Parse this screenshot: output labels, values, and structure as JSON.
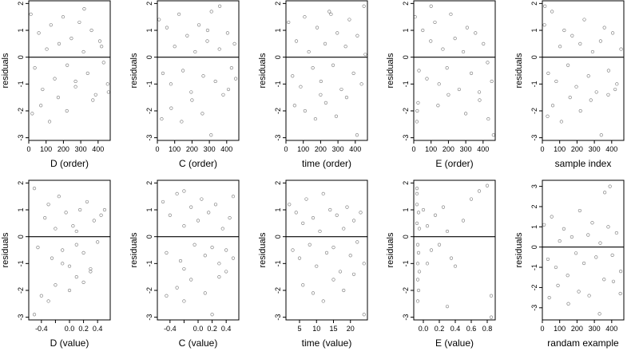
{
  "chart_data": [
    {
      "id": "p1",
      "type": "scatter",
      "xlabel": "D (order)",
      "ylabel": "residuals",
      "xlim": [
        0,
        470
      ],
      "ylim": [
        -3.1,
        2.1
      ],
      "xticks": [
        0,
        100,
        200,
        300,
        400
      ],
      "xtick_labels": [
        "0",
        "100",
        "200",
        "300",
        "400"
      ],
      "yticks": [
        -3,
        -2,
        -1,
        0,
        1,
        2
      ],
      "ytick_labels": [
        "-3",
        "-2",
        "-1",
        "0",
        "1",
        "2"
      ],
      "hline": 0,
      "x": [
        12,
        35,
        58,
        80,
        104,
        128,
        150,
        175,
        198,
        222,
        246,
        270,
        292,
        316,
        340,
        362,
        386,
        410,
        432,
        455,
        20,
        70,
        120,
        170,
        220,
        270,
        320,
        370,
        420,
        460
      ],
      "y": [
        1.6,
        -0.4,
        0.9,
        -1.2,
        0.3,
        1.2,
        -0.8,
        0.5,
        1.5,
        -0.3,
        0.7,
        -1.1,
        1.3,
        0.2,
        -0.6,
        1.0,
        -1.4,
        0.6,
        -0.2,
        -1.0,
        -2.1,
        -1.8,
        -2.4,
        -1.5,
        -2.0,
        -0.9,
        1.8,
        -1.6,
        0.4,
        -1.3
      ]
    },
    {
      "id": "p2",
      "type": "scatter",
      "xlabel": "C (order)",
      "ylabel": "residuals",
      "xlim": [
        0,
        470
      ],
      "ylim": [
        -3.1,
        2.1
      ],
      "xticks": [
        0,
        100,
        200,
        300,
        400
      ],
      "xtick_labels": [
        "0",
        "100",
        "200",
        "300",
        "400"
      ],
      "yticks": [
        -3,
        -2,
        -1,
        0,
        1,
        2
      ],
      "ytick_labels": [
        "-3",
        "-2",
        "-1",
        "0",
        "1",
        "2"
      ],
      "hline": 0,
      "x": [
        10,
        32,
        55,
        78,
        100,
        125,
        148,
        172,
        195,
        218,
        240,
        265,
        288,
        312,
        335,
        358,
        380,
        405,
        428,
        452,
        25,
        80,
        140,
        200,
        260,
        310,
        360,
        410,
        445,
        290
      ],
      "y": [
        1.4,
        -0.6,
        1.1,
        -1.0,
        0.4,
        1.6,
        -0.5,
        0.8,
        -1.3,
        0.2,
        1.2,
        -0.7,
        0.6,
        1.7,
        -0.9,
        0.3,
        -1.4,
        0.9,
        -0.4,
        -0.8,
        -2.3,
        -1.9,
        -2.4,
        -1.6,
        -2.1,
        -2.9,
        1.9,
        -1.2,
        0.5,
        1.0
      ]
    },
    {
      "id": "p3",
      "type": "scatter",
      "xlabel": "time (order)",
      "ylabel": "residuals",
      "xlim": [
        0,
        470
      ],
      "ylim": [
        -3.1,
        2.1
      ],
      "xticks": [
        0,
        100,
        200,
        300,
        400
      ],
      "xtick_labels": [
        "0",
        "100",
        "200",
        "300",
        "400"
      ],
      "yticks": [
        -3,
        -2,
        -1,
        0,
        1,
        2
      ],
      "ytick_labels": [
        "-3",
        "-2",
        "-1",
        "0",
        "1",
        "2"
      ],
      "hline": 0,
      "x": [
        15,
        38,
        60,
        85,
        108,
        132,
        155,
        180,
        202,
        226,
        250,
        272,
        296,
        320,
        344,
        366,
        390,
        412,
        436,
        458,
        50,
        110,
        170,
        230,
        290,
        350,
        410,
        450,
        200,
        260
      ],
      "y": [
        1.3,
        -0.7,
        0.6,
        -1.1,
        1.5,
        0.2,
        -0.4,
        1.1,
        -0.9,
        0.5,
        1.7,
        -0.3,
        0.9,
        -1.2,
        0.4,
        1.4,
        -0.6,
        0.8,
        -1.0,
        0.1,
        -1.8,
        -2.0,
        -2.3,
        -1.7,
        -2.2,
        -1.5,
        -2.9,
        1.9,
        -1.4,
        1.6
      ]
    },
    {
      "id": "p4",
      "type": "scatter",
      "xlabel": "E (order)",
      "ylabel": "residuals",
      "xlim": [
        0,
        470
      ],
      "ylim": [
        -3.1,
        2.1
      ],
      "xticks": [
        0,
        100,
        200,
        300,
        400
      ],
      "xtick_labels": [
        "0",
        "100",
        "200",
        "300",
        "400"
      ],
      "yticks": [
        -3,
        -2,
        -1,
        0,
        1,
        2
      ],
      "ytick_labels": [
        "-3",
        "-2",
        "-1",
        "0",
        "1",
        "2"
      ],
      "hline": 0,
      "x": [
        8,
        30,
        52,
        76,
        98,
        122,
        146,
        168,
        192,
        214,
        238,
        262,
        286,
        308,
        332,
        356,
        378,
        402,
        426,
        450,
        20,
        18,
        25,
        140,
        200,
        300,
        380,
        430,
        460,
        100
      ],
      "y": [
        1.5,
        -0.5,
        1.0,
        -0.8,
        0.6,
        1.3,
        -1.0,
        0.3,
        -0.4,
        1.6,
        0.7,
        -1.2,
        0.2,
        1.1,
        -0.6,
        0.9,
        -1.3,
        0.5,
        -0.2,
        -0.9,
        -2.0,
        -2.4,
        -1.7,
        -1.8,
        -1.4,
        -2.1,
        -1.6,
        -2.3,
        -2.9,
        1.9
      ]
    },
    {
      "id": "p5",
      "type": "scatter",
      "xlabel": "sample index",
      "ylabel": "residuals",
      "xlim": [
        0,
        470
      ],
      "ylim": [
        -3.1,
        2.1
      ],
      "xticks": [
        0,
        100,
        200,
        300,
        400
      ],
      "xtick_labels": [
        "0",
        "100",
        "200",
        "300",
        "400"
      ],
      "yticks": [
        -3,
        -2,
        -1,
        0,
        1,
        2
      ],
      "ytick_labels": [
        "-3",
        "-2",
        "-1",
        "0",
        "1",
        "2"
      ],
      "hline": 0,
      "x": [
        12,
        34,
        56,
        80,
        102,
        126,
        148,
        172,
        196,
        218,
        242,
        266,
        290,
        312,
        336,
        358,
        382,
        406,
        430,
        454,
        30,
        60,
        110,
        160,
        220,
        280,
        340,
        380,
        420,
        15
      ],
      "y": [
        1.2,
        -0.6,
        1.7,
        -0.9,
        0.4,
        1.0,
        -0.3,
        0.8,
        -1.1,
        0.5,
        1.4,
        -0.7,
        0.2,
        -1.3,
        0.6,
        1.1,
        -0.5,
        0.9,
        -1.0,
        0.3,
        -2.2,
        -1.8,
        -2.4,
        -1.5,
        -2.0,
        -1.6,
        -2.9,
        -1.4,
        -1.2,
        1.9
      ]
    },
    {
      "id": "p6",
      "type": "scatter",
      "xlabel": "D (value)",
      "ylabel": "residuals",
      "xlim": [
        -0.58,
        0.58
      ],
      "ylim": [
        -3.1,
        2.1
      ],
      "xticks": [
        -0.4,
        -0.2,
        0.0,
        0.2,
        0.4
      ],
      "xtick_labels": [
        "-0.4",
        "",
        "0.0",
        "0.2",
        "0.4"
      ],
      "yticks": [
        -3,
        -2,
        -1,
        0,
        1,
        2
      ],
      "ytick_labels": [
        "-3",
        "-2",
        "-1",
        "0",
        "1",
        "2"
      ],
      "hline": 0,
      "x": [
        -0.5,
        -0.45,
        -0.35,
        -0.3,
        -0.25,
        -0.2,
        -0.15,
        -0.1,
        -0.05,
        0.0,
        0.05,
        0.1,
        0.1,
        0.15,
        0.2,
        0.25,
        0.3,
        0.35,
        0.4,
        0.45,
        -0.5,
        -0.4,
        -0.3,
        -0.2,
        0.0,
        0.1,
        0.2,
        0.3,
        0.5,
        -0.1
      ],
      "y": [
        1.8,
        -0.4,
        0.7,
        1.2,
        -0.8,
        0.3,
        1.5,
        -0.5,
        0.9,
        -1.1,
        0.4,
        -0.3,
        0.2,
        1.0,
        -0.6,
        1.3,
        -1.2,
        0.6,
        -0.2,
        0.8,
        -2.9,
        -2.2,
        -2.4,
        -1.8,
        -2.0,
        -1.5,
        -1.7,
        -1.3,
        1.0,
        -1.0
      ]
    },
    {
      "id": "p7",
      "type": "scatter",
      "xlabel": "C (value)",
      "ylabel": "residuals",
      "xlim": [
        -0.58,
        0.58
      ],
      "ylim": [
        -3.1,
        2.1
      ],
      "xticks": [
        -0.4,
        -0.2,
        0.0,
        0.2,
        0.4
      ],
      "xtick_labels": [
        "-0.4",
        "",
        "0.0",
        "0.2",
        "0.4"
      ],
      "yticks": [
        -3,
        -2,
        -1,
        0,
        1,
        2
      ],
      "ytick_labels": [
        "-3",
        "-2",
        "-1",
        "0",
        "1",
        "2"
      ],
      "hline": 0,
      "x": [
        -0.5,
        -0.45,
        -0.4,
        -0.3,
        -0.25,
        -0.2,
        -0.2,
        -0.1,
        -0.05,
        0.0,
        0.05,
        0.1,
        0.15,
        0.2,
        0.25,
        0.3,
        0.35,
        0.4,
        0.45,
        0.5,
        -0.45,
        -0.3,
        -0.2,
        -0.1,
        0.1,
        0.2,
        0.3,
        0.4,
        0.5,
        -0.2
      ],
      "y": [
        1.3,
        -0.6,
        0.8,
        1.6,
        -0.9,
        0.4,
        -1.2,
        1.1,
        -0.3,
        0.6,
        1.4,
        -0.7,
        0.9,
        -0.4,
        1.2,
        -1.0,
        0.3,
        -0.5,
        0.7,
        -0.8,
        -2.2,
        -1.9,
        -2.4,
        -1.6,
        -2.1,
        -2.9,
        -1.5,
        -1.3,
        1.5,
        1.7
      ]
    },
    {
      "id": "p8",
      "type": "scatter",
      "xlabel": "time (value)",
      "ylabel": "residuals",
      "xlim": [
        1,
        25
      ],
      "ylim": [
        -3.1,
        2.1
      ],
      "xticks": [
        5,
        10,
        15,
        20
      ],
      "xtick_labels": [
        "5",
        "10",
        "15",
        "20"
      ],
      "yticks": [
        -3,
        -2,
        -1,
        0,
        1,
        2
      ],
      "ytick_labels": [
        "-3",
        "-2",
        "-1",
        "0",
        "1",
        "2"
      ],
      "hline": 0,
      "x": [
        2,
        3,
        4,
        5,
        6,
        7,
        8,
        9,
        10,
        11,
        12,
        13,
        14,
        15,
        16,
        17,
        18,
        19,
        20,
        21,
        22,
        23,
        24,
        6,
        9,
        12,
        15,
        18,
        21,
        24
      ],
      "y": [
        1.2,
        -0.5,
        0.9,
        -0.8,
        0.5,
        1.4,
        -0.3,
        0.7,
        -1.1,
        0.2,
        1.6,
        -0.6,
        1.0,
        -0.4,
        0.8,
        -1.3,
        0.3,
        1.1,
        -0.7,
        0.6,
        -0.2,
        0.9,
        -1.0,
        -1.8,
        -2.1,
        -2.4,
        -1.6,
        -2.0,
        -1.4,
        -2.9
      ]
    },
    {
      "id": "p9",
      "type": "scatter",
      "xlabel": "E (value)",
      "ylabel": "residuals",
      "xlim": [
        -0.12,
        0.9
      ],
      "ylim": [
        -3.1,
        2.1
      ],
      "xticks": [
        0.0,
        0.2,
        0.4,
        0.6,
        0.8
      ],
      "xtick_labels": [
        "0.0",
        "0.2",
        "0.4",
        "0.6",
        "0.8"
      ],
      "yticks": [
        -3,
        -2,
        -1,
        0,
        1,
        2
      ],
      "ytick_labels": [
        "-3",
        "-2",
        "-1",
        "0",
        "1",
        "2"
      ],
      "hline": 0,
      "x": [
        -0.08,
        -0.08,
        -0.08,
        -0.07,
        -0.07,
        -0.07,
        -0.06,
        -0.06,
        -0.05,
        -0.05,
        0.0,
        0.05,
        0.1,
        0.15,
        0.2,
        0.25,
        0.3,
        0.35,
        0.4,
        0.5,
        0.6,
        0.7,
        0.8,
        0.85,
        -0.07,
        -0.06,
        0.05,
        0.3,
        0.85,
        -0.08
      ],
      "y": [
        1.8,
        1.2,
        0.5,
        -0.3,
        -1.0,
        -1.6,
        0.9,
        -0.6,
        0.3,
        -1.3,
        1.0,
        0.4,
        -0.5,
        0.8,
        -0.3,
        1.1,
        0.2,
        -0.8,
        -1.1,
        0.6,
        1.4,
        1.7,
        1.9,
        -2.2,
        -2.4,
        -2.0,
        -1.0,
        -2.6,
        -3.0,
        1.6
      ]
    },
    {
      "id": "p10",
      "type": "scatter",
      "xlabel": "randam example",
      "ylabel": "residuals",
      "xlim": [
        0,
        470
      ],
      "ylim": [
        -3.6,
        3.3
      ],
      "xticks": [
        0,
        100,
        200,
        300,
        400
      ],
      "xtick_labels": [
        "0",
        "100",
        "200",
        "300",
        "400"
      ],
      "yticks": [
        -3,
        -2,
        -1,
        0,
        1,
        2,
        3
      ],
      "ytick_labels": [
        "-3",
        "-2",
        "-1",
        "0",
        "1",
        "2",
        "3"
      ],
      "hline": 0,
      "x": [
        10,
        32,
        54,
        78,
        100,
        124,
        146,
        170,
        194,
        216,
        240,
        264,
        288,
        310,
        334,
        356,
        380,
        404,
        428,
        452,
        40,
        90,
        150,
        210,
        270,
        330,
        360,
        410,
        450,
        390
      ],
      "y": [
        1.1,
        -0.6,
        1.5,
        -1.0,
        0.3,
        0.9,
        -1.4,
        0.5,
        -0.3,
        1.8,
        -0.8,
        0.6,
        1.2,
        -0.5,
        0.2,
        -1.6,
        1.0,
        -0.4,
        0.7,
        -1.2,
        -2.5,
        -1.9,
        -2.8,
        -2.2,
        -2.4,
        -3.3,
        2.7,
        -1.7,
        -2.3,
        3.0
      ]
    }
  ]
}
